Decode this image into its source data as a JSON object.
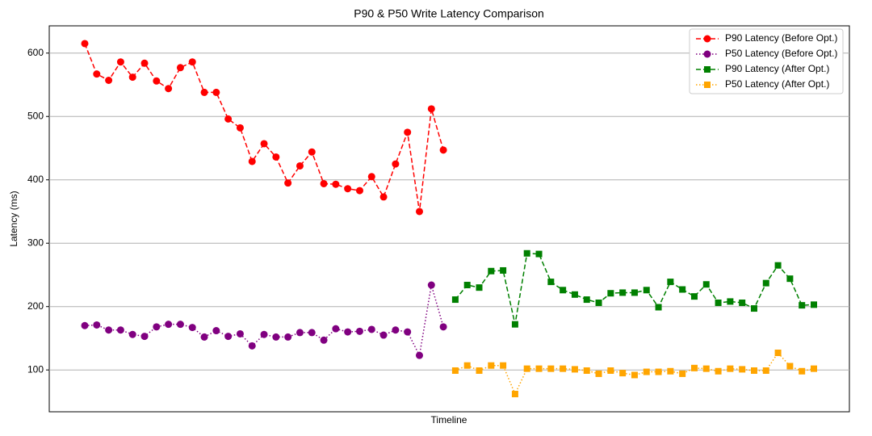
{
  "chart_data": {
    "type": "line",
    "title": "P90 & P50 Write Latency Comparison",
    "xlabel": "Timeline",
    "ylabel": "Latency (ms)",
    "categories": [
      null,
      null,
      null,
      null,
      null,
      null,
      null,
      null,
      null,
      null,
      null,
      null,
      null,
      null,
      null,
      null,
      null,
      null,
      null,
      null,
      null,
      null,
      null,
      null,
      null,
      null,
      null,
      null,
      null,
      null,
      null,
      null,
      null,
      null,
      null,
      null,
      null,
      null,
      null,
      null,
      null,
      null,
      null,
      null,
      null,
      null,
      null,
      null,
      null,
      null,
      null,
      null,
      null,
      null,
      null,
      null,
      null,
      null,
      null,
      null,
      null,
      null
    ],
    "ylim": [
      34,
      643
    ],
    "yticks": [
      100,
      200,
      300,
      400,
      500,
      600
    ],
    "grid": "y",
    "legend": "upper right",
    "series": [
      {
        "name": "P90 Latency (Before Opt.)",
        "color": "#ff0000",
        "marker": "circle",
        "linestyle": "dashed",
        "values": [
          615,
          567,
          557,
          586,
          562,
          584,
          556,
          544,
          577,
          586,
          538,
          538,
          496,
          482,
          429,
          457,
          436,
          395,
          422,
          444,
          394,
          393,
          386,
          383,
          405,
          373,
          425,
          475,
          350,
          512,
          447,
          null,
          null,
          null,
          null,
          null,
          null,
          null,
          null,
          null,
          null,
          null,
          null,
          null,
          null,
          null,
          null,
          null,
          null,
          null,
          null,
          null,
          null,
          null,
          null,
          null,
          null,
          null,
          null,
          null,
          null,
          null
        ]
      },
      {
        "name": "P50 Latency (Before Opt.)",
        "color": "#800080",
        "marker": "circle",
        "linestyle": "dotted",
        "values": [
          170,
          171,
          163,
          163,
          156,
          153,
          168,
          172,
          172,
          167,
          152,
          162,
          153,
          157,
          138,
          156,
          152,
          152,
          159,
          159,
          147,
          165,
          160,
          161,
          164,
          155,
          163,
          160,
          123,
          234,
          168,
          null,
          null,
          null,
          null,
          null,
          null,
          null,
          null,
          null,
          null,
          null,
          null,
          null,
          null,
          null,
          null,
          null,
          null,
          null,
          null,
          null,
          null,
          null,
          null,
          null,
          null,
          null,
          null,
          null,
          null,
          null
        ]
      },
      {
        "name": "P90 Latency (After Opt.)",
        "color": "#008000",
        "marker": "square",
        "linestyle": "dashed",
        "values": [
          null,
          null,
          null,
          null,
          null,
          null,
          null,
          null,
          null,
          null,
          null,
          null,
          null,
          null,
          null,
          null,
          null,
          null,
          null,
          null,
          null,
          null,
          null,
          null,
          null,
          null,
          null,
          null,
          null,
          null,
          null,
          211,
          234,
          230,
          256,
          257,
          172,
          284,
          283,
          239,
          226,
          219,
          211,
          206,
          221,
          222,
          222,
          226,
          199,
          239,
          227,
          216,
          235,
          206,
          208,
          206,
          197,
          237,
          265,
          244,
          202,
          203
        ]
      },
      {
        "name": "P50 Latency (After Opt.)",
        "color": "#ffa500",
        "marker": "square",
        "linestyle": "dotted",
        "values": [
          null,
          null,
          null,
          null,
          null,
          null,
          null,
          null,
          null,
          null,
          null,
          null,
          null,
          null,
          null,
          null,
          null,
          null,
          null,
          null,
          null,
          null,
          null,
          null,
          null,
          null,
          null,
          null,
          null,
          null,
          null,
          99,
          107,
          99,
          107,
          107,
          62,
          102,
          102,
          102,
          102,
          101,
          99,
          94,
          99,
          95,
          92,
          97,
          97,
          98,
          94,
          103,
          102,
          98,
          102,
          101,
          99,
          99,
          127,
          106,
          98,
          102
        ]
      }
    ]
  }
}
